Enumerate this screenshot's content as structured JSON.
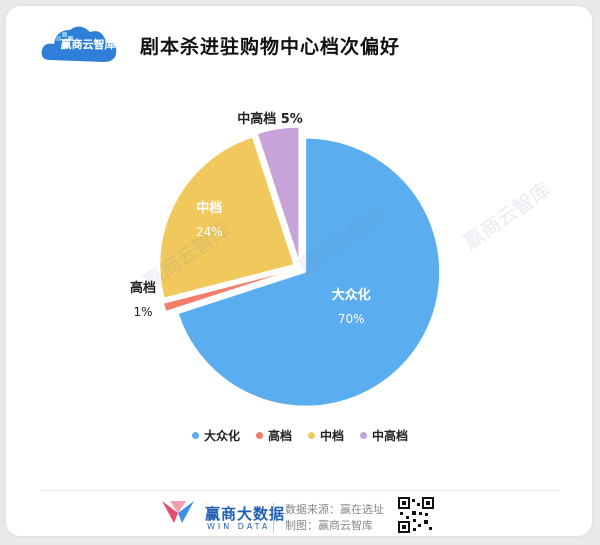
{
  "title": "剧本杀进驻购物中心档次偏好",
  "logo_text": "赢商云智库",
  "watermark": "赢商云智库",
  "colors": {
    "大众化": "#5aadee",
    "高档": "#f47e6a",
    "中档": "#f1c85b",
    "中高档": "#c8a3d9"
  },
  "chart_data": {
    "type": "pie",
    "title": "剧本杀进驻购物中心档次偏好",
    "slices": [
      {
        "label": "大众化",
        "value": 70,
        "display": "70%"
      },
      {
        "label": "高档",
        "value": 1,
        "display": "1%"
      },
      {
        "label": "中档",
        "value": 24,
        "display": "24%"
      },
      {
        "label": "中高档",
        "value": 5,
        "display": "5%"
      }
    ],
    "legend": [
      "大众化",
      "高档",
      "中档",
      "中高档"
    ],
    "legend_position": "bottom"
  },
  "footer": {
    "brand": "赢商大数据",
    "brand_sub": "WIN DATA",
    "source_line": "数据来源：赢在选址",
    "made_by_line": "制图：赢商云智库"
  }
}
